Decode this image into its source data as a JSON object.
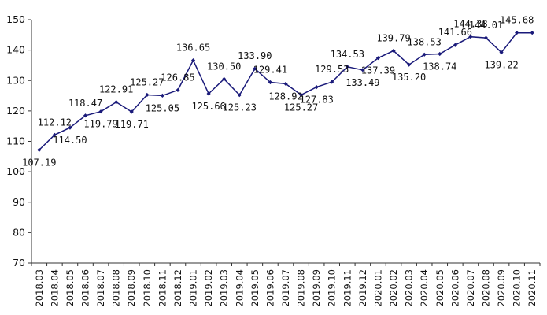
{
  "chart_data": {
    "type": "line",
    "title": "",
    "xlabel": "",
    "ylabel": "",
    "ylim": [
      70,
      150
    ],
    "yticks": [
      "70",
      "80",
      "90",
      "100",
      "110",
      "120",
      "130",
      "140",
      "150"
    ],
    "grid": false,
    "legend": "none",
    "line_color": "#1a1a7a",
    "categories": [
      "2018.03",
      "2018.04",
      "2018.05",
      "2018.06",
      "2018.07",
      "2018.08",
      "2018.09",
      "2018.10",
      "2018.11",
      "2018.12",
      "2019.01",
      "2019.02",
      "2019.03",
      "2019.04",
      "2019.05",
      "2019.06",
      "2019.07",
      "2019.08",
      "2019.09",
      "2019.10",
      "2019.11",
      "2019.12",
      "2020.01",
      "2020.02",
      "2020.03",
      "2020.04",
      "2020.05",
      "2020.06",
      "2020.07",
      "2020.08",
      "2020.09",
      "2020.10",
      "2020.11"
    ],
    "series": [
      {
        "values": [
          107.19,
          112.12,
          114.5,
          118.47,
          119.79,
          122.91,
          119.71,
          125.27,
          125.05,
          126.85,
          136.65,
          125.66,
          130.5,
          125.23,
          133.9,
          129.41,
          128.92,
          125.27,
          127.83,
          129.53,
          134.53,
          133.49,
          137.39,
          139.79,
          135.2,
          138.53,
          138.74,
          141.66,
          144.38,
          144.01,
          139.22,
          145.68,
          145.68
        ],
        "labels": [
          "107.19",
          "112.12",
          "114.50",
          "118.47",
          "119.79",
          "122.91",
          "119.71",
          "125.27",
          "125.05",
          "126.85",
          "136.65",
          "125.66",
          "130.50",
          "125.23",
          "133.90",
          "129.41",
          "128.92",
          "125.27",
          "127.83",
          "129.53",
          "134.53",
          "133.49",
          "137.39",
          "139.79",
          "135.20",
          "138.53",
          "138.74",
          "141.66",
          "144.38",
          "144.01",
          "139.22",
          "145.68",
          ""
        ]
      }
    ]
  }
}
